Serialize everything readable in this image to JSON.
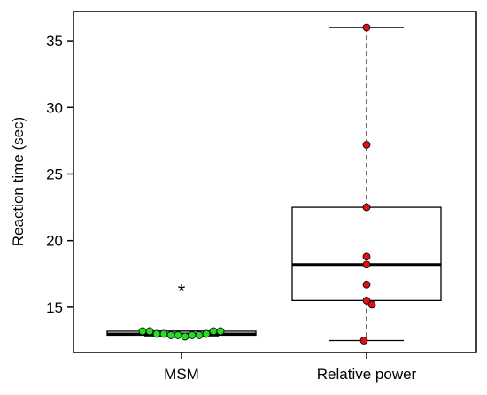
{
  "chart_data": {
    "type": "box",
    "title": "",
    "xlabel": "",
    "ylabel": "Reaction time (sec)",
    "categories": [
      "MSM",
      "Relative power"
    ],
    "ylim": [
      11.6,
      37.2
    ],
    "yticks": [
      15,
      20,
      25,
      30,
      35
    ],
    "grid": false,
    "boxes": [
      {
        "name": "MSM",
        "whisker_low": 12.8,
        "q1": 12.9,
        "median": 13.0,
        "q3": 13.2,
        "whisker_high": 13.2,
        "outliers": [
          16.5
        ],
        "outlier_marker": "*",
        "point_color": "#22dd22",
        "whisker_style": "solid",
        "points": [
          13.2,
          13.2,
          13.0,
          13.0,
          12.9,
          12.9,
          12.8,
          12.9,
          12.9,
          13.0,
          13.2,
          13.2
        ]
      },
      {
        "name": "Relative power",
        "whisker_low": 12.5,
        "q1": 15.5,
        "median": 18.2,
        "q3": 22.5,
        "whisker_high": 36.0,
        "outliers": [],
        "point_color": "#dd1111",
        "whisker_style": "dashed",
        "points": [
          36.0,
          27.2,
          22.5,
          18.8,
          18.2,
          16.7,
          15.5,
          15.2,
          12.5
        ]
      }
    ]
  }
}
